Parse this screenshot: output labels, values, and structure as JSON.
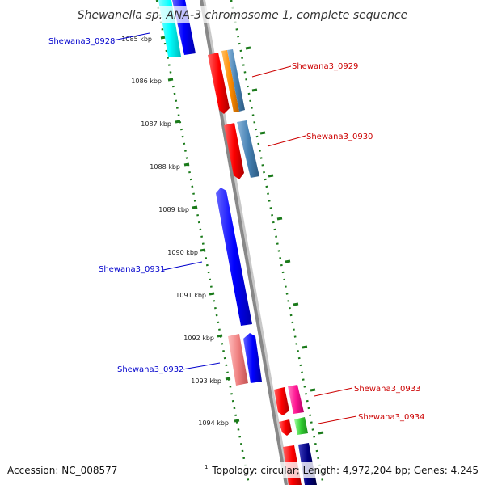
{
  "title": "Shewanella sp. ANA-3 chromosome 1, complete sequence",
  "accession": "Accession: NC_008577",
  "topology": "Topology: circular; Length: 4,972,204 bp; Genes: 4,245",
  "footnote_marker": "1",
  "colors": {
    "backbone": "#888888",
    "ticks": "#1a7a1a",
    "label_forward": "#0000cc",
    "label_reverse": "#cc0000"
  },
  "ticks": [
    "1085 kbp",
    "1086 kbp",
    "1087 kbp",
    "1088 kbp",
    "1089 kbp",
    "1090 kbp",
    "1091 kbp",
    "1092 kbp",
    "1093 kbp",
    "1094 kbp"
  ],
  "gene_labels": [
    "Shewana3_0928",
    "Shewana3_0929",
    "Shewana3_0930",
    "Shewana3_0931",
    "Shewana3_0932",
    "Shewana3_0933",
    "Shewana3_0934"
  ],
  "feature_colors": [
    "#00ffff",
    "#0000ff",
    "#ff0000",
    "#ff8c00",
    "#4682b4",
    "#f08080",
    "#ff1493",
    "#32cd32",
    "#000080"
  ]
}
